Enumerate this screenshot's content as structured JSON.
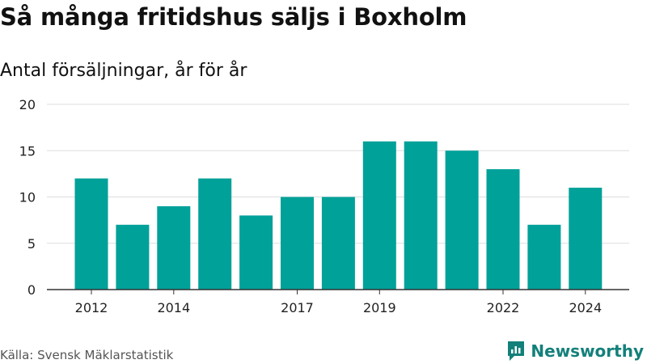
{
  "title": "Så många fritidshus säljs i Boxholm",
  "subtitle": "Antal försäljningar, år för år",
  "source": "Källa: Svensk Mäklarstatistik",
  "brand": {
    "name": "Newsworthy",
    "icon": "newsworthy-logo-icon",
    "color": "#13807a"
  },
  "chart_data": {
    "type": "bar",
    "categories": [
      "2012",
      "2013",
      "2014",
      "2015",
      "2016",
      "2017",
      "2018",
      "2019",
      "2020",
      "2021",
      "2022",
      "2023",
      "2024"
    ],
    "tick_labels": [
      "2012",
      "",
      "2014",
      "",
      "",
      "2017",
      "",
      "2019",
      "",
      "",
      "2022",
      "",
      "2024"
    ],
    "values": [
      12,
      7,
      9,
      12,
      8,
      10,
      10,
      16,
      16,
      15,
      13,
      7,
      11
    ],
    "yticks": [
      0,
      5,
      10,
      15,
      20
    ],
    "ylim": [
      0,
      20
    ],
    "xlabel": "",
    "ylabel": "",
    "grid": true,
    "bar_color": "#00a199",
    "axis_color": "#333333",
    "grid_color": "#dddddd"
  }
}
